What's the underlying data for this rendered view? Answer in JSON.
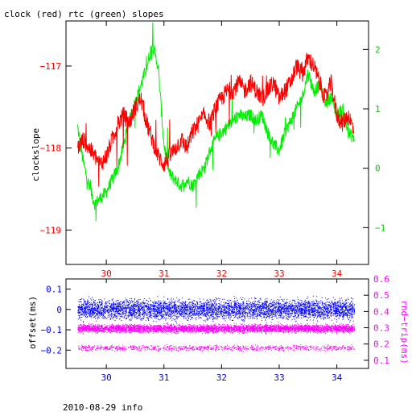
{
  "chart_data": [
    {
      "type": "line",
      "title": "clock (red) rtc (green) slopes",
      "ylabel": "clockslope",
      "xlim": [
        29.3,
        34.55
      ],
      "x_ticks": [
        30,
        31,
        32,
        33,
        34
      ],
      "x_tick_labels": [
        "30",
        "31",
        "32",
        "33",
        "34"
      ],
      "ylim_left": [
        -119.42,
        -116.45
      ],
      "y_left_ticks": [
        -117,
        -118,
        -119
      ],
      "y_left_tick_labels": [
        "−117",
        "−118",
        "−119"
      ],
      "ylim_right": [
        -1.62,
        2.48
      ],
      "y_right_ticks": [
        2,
        1,
        0,
        -1
      ],
      "y_right_tick_labels": [
        "2",
        "1",
        "0",
        "−1"
      ],
      "colors": {
        "clock": "#ff0000",
        "rtc": "#00ee00",
        "axes": "#000000"
      },
      "series": [
        {
          "axis": "left",
          "color": "#ff0000",
          "x": [
            29.5,
            29.6,
            29.7,
            29.8,
            29.9,
            30.0,
            30.1,
            30.2,
            30.3,
            30.4,
            30.5,
            30.6,
            30.7,
            30.8,
            30.9,
            31.0,
            31.1,
            31.2,
            31.3,
            31.4,
            31.5,
            31.6,
            31.7,
            31.8,
            31.9,
            32.0,
            32.1,
            32.2,
            32.3,
            32.4,
            32.5,
            32.6,
            32.7,
            32.8,
            32.9,
            33.0,
            33.1,
            33.2,
            33.3,
            33.4,
            33.5,
            33.6,
            33.7,
            33.8,
            33.9,
            34.0,
            34.1,
            34.2,
            34.3
          ],
          "y": [
            -118.0,
            -117.9,
            -118.0,
            -118.1,
            -118.2,
            -118.1,
            -117.9,
            -117.7,
            -117.6,
            -117.7,
            -117.5,
            -117.4,
            -117.7,
            -117.9,
            -118.1,
            -118.2,
            -118.1,
            -118.0,
            -117.9,
            -118.0,
            -117.8,
            -117.7,
            -117.6,
            -117.7,
            -117.5,
            -117.4,
            -117.3,
            -117.3,
            -117.2,
            -117.3,
            -117.2,
            -117.3,
            -117.4,
            -117.3,
            -117.2,
            -117.4,
            -117.3,
            -117.2,
            -117.0,
            -117.1,
            -116.9,
            -117.0,
            -117.2,
            -117.4,
            -117.2,
            -117.6,
            -117.7,
            -117.6,
            -117.8
          ]
        },
        {
          "axis": "right",
          "color": "#00ee00",
          "x": [
            29.5,
            29.6,
            29.7,
            29.8,
            29.9,
            30.0,
            30.1,
            30.2,
            30.3,
            30.4,
            30.5,
            30.6,
            30.7,
            30.8,
            30.9,
            31.0,
            31.1,
            31.2,
            31.3,
            31.4,
            31.5,
            31.6,
            31.7,
            31.8,
            31.9,
            32.0,
            32.1,
            32.2,
            32.3,
            32.4,
            32.5,
            32.6,
            32.7,
            32.8,
            32.9,
            33.0,
            33.1,
            33.2,
            33.3,
            33.4,
            33.5,
            33.6,
            33.7,
            33.8,
            33.9,
            34.0,
            34.1,
            34.2,
            34.3
          ],
          "y": [
            0.7,
            0.1,
            -0.3,
            -0.6,
            -0.5,
            -0.4,
            -0.2,
            0.0,
            0.4,
            0.8,
            1.1,
            1.4,
            1.7,
            2.1,
            1.7,
            0.4,
            -0.1,
            -0.2,
            -0.3,
            -0.2,
            -0.3,
            -0.1,
            0.0,
            0.3,
            0.5,
            0.6,
            0.7,
            0.8,
            0.9,
            0.85,
            0.9,
            0.8,
            0.9,
            0.6,
            0.4,
            0.3,
            0.6,
            0.8,
            1.0,
            1.2,
            1.6,
            1.3,
            1.4,
            1.1,
            1.2,
            0.9,
            1.0,
            0.6,
            0.5
          ]
        }
      ]
    },
    {
      "type": "scatter",
      "ylabel_left": "offset(ms)",
      "ylabel_right": "rnd−trip(ms)",
      "xlim": [
        29.3,
        34.55
      ],
      "x_ticks": [
        30,
        31,
        32,
        33,
        34
      ],
      "x_tick_labels": [
        "30",
        "31",
        "32",
        "33",
        "34"
      ],
      "ylim_left": [
        -0.29,
        0.15
      ],
      "y_left_ticks": [
        0.1,
        0,
        -0.1,
        -0.2
      ],
      "y_left_tick_labels": [
        "0.1",
        "0",
        "−0.1",
        "−0.2"
      ],
      "ylim_right": [
        0.05,
        0.6
      ],
      "y_right_ticks": [
        0.6,
        0.5,
        0.4,
        0.3,
        0.2,
        0.1
      ],
      "y_right_tick_labels": [
        "0.6",
        "0.5",
        "0.4",
        "0.3",
        "0.2",
        "0.1"
      ],
      "colors": {
        "offset": "#0000ff",
        "roundtrip": "#ff00ff"
      },
      "series": [
        {
          "axis": "left",
          "color": "#0000ff",
          "x_range": [
            29.5,
            34.3
          ],
          "y_center": 0.0,
          "y_band": [
            -0.05,
            0.05
          ]
        },
        {
          "axis": "right",
          "color": "#ff00ff",
          "x_range": [
            29.5,
            34.3
          ],
          "y_center": 0.29,
          "y_band": [
            0.26,
            0.33
          ],
          "y_lower_band": [
            0.15,
            0.2
          ]
        }
      ]
    }
  ],
  "footer": {
    "text": "2010-08-29 info"
  }
}
